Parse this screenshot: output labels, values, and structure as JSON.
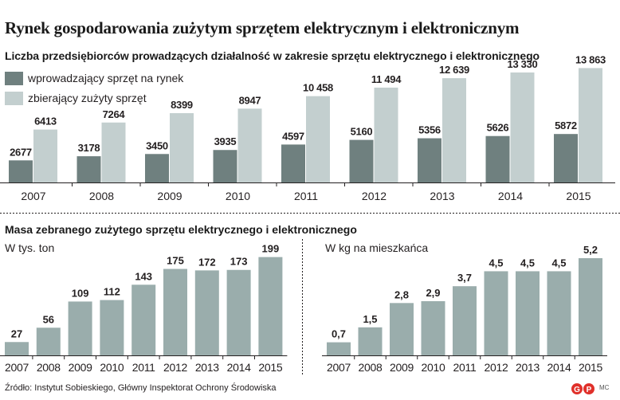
{
  "title": "Rynek gospodarowania zużytym sprzętem elektrycznym i elektronicznym",
  "source": "Źródło: Instytut Sobieskiego, Główny Inspektorat Ochrony Środowiska",
  "credit": "MC",
  "logo_text": "GP",
  "colors": {
    "dark": "#6f807f",
    "light": "#c3cfcf",
    "mid": "#9aadac",
    "logo": "#e0302a"
  },
  "chart_data": [
    {
      "type": "bar",
      "title": "Liczba przedsiębiorców prowadzących działalność w zakresie sprzętu elektrycznego i elektronicznego",
      "categories": [
        "2007",
        "2008",
        "2009",
        "2010",
        "2011",
        "2012",
        "2013",
        "2014",
        "2015"
      ],
      "series": [
        {
          "name": "wprowadzający sprzęt na rynek",
          "values": [
            2677,
            3178,
            3450,
            3935,
            4597,
            5160,
            5356,
            5626,
            5872
          ],
          "labels": [
            "2677",
            "3178",
            "3450",
            "3935",
            "4597",
            "5160",
            "5356",
            "5626",
            "5872"
          ]
        },
        {
          "name": "zbierający zużyty sprzęt",
          "values": [
            6413,
            7264,
            8399,
            8947,
            10458,
            11494,
            12639,
            13330,
            13863
          ],
          "labels": [
            "6413",
            "7264",
            "8399",
            "8947",
            "10 458",
            "11 494",
            "12 639",
            "13 330",
            "13 863"
          ]
        }
      ],
      "ylim": [
        0,
        14000
      ],
      "legend": "top-left",
      "grid": false
    },
    {
      "type": "bar",
      "title": "Masa zebranego zużytego sprzętu elektrycznego i elektronicznego",
      "subtitle": "W tys. ton",
      "categories": [
        "2007",
        "2008",
        "2009",
        "2010",
        "2011",
        "2012",
        "2013",
        "2014",
        "2015"
      ],
      "values": [
        27,
        56,
        109,
        112,
        143,
        175,
        172,
        173,
        199
      ],
      "labels": [
        "27",
        "56",
        "109",
        "112",
        "143",
        "175",
        "172",
        "173",
        "199"
      ],
      "ylim": [
        0,
        200
      ]
    },
    {
      "type": "bar",
      "subtitle": "W kg na mieszkańca",
      "categories": [
        "2007",
        "2008",
        "2009",
        "2010",
        "2011",
        "2012",
        "2013",
        "2014",
        "2015"
      ],
      "values": [
        0.7,
        1.5,
        2.8,
        2.9,
        3.7,
        4.5,
        4.5,
        4.5,
        5.2
      ],
      "labels": [
        "0,7",
        "1,5",
        "2,8",
        "2,9",
        "3,7",
        "4,5",
        "4,5",
        "4,5",
        "5,2"
      ],
      "ylim": [
        0,
        5.2
      ]
    }
  ]
}
